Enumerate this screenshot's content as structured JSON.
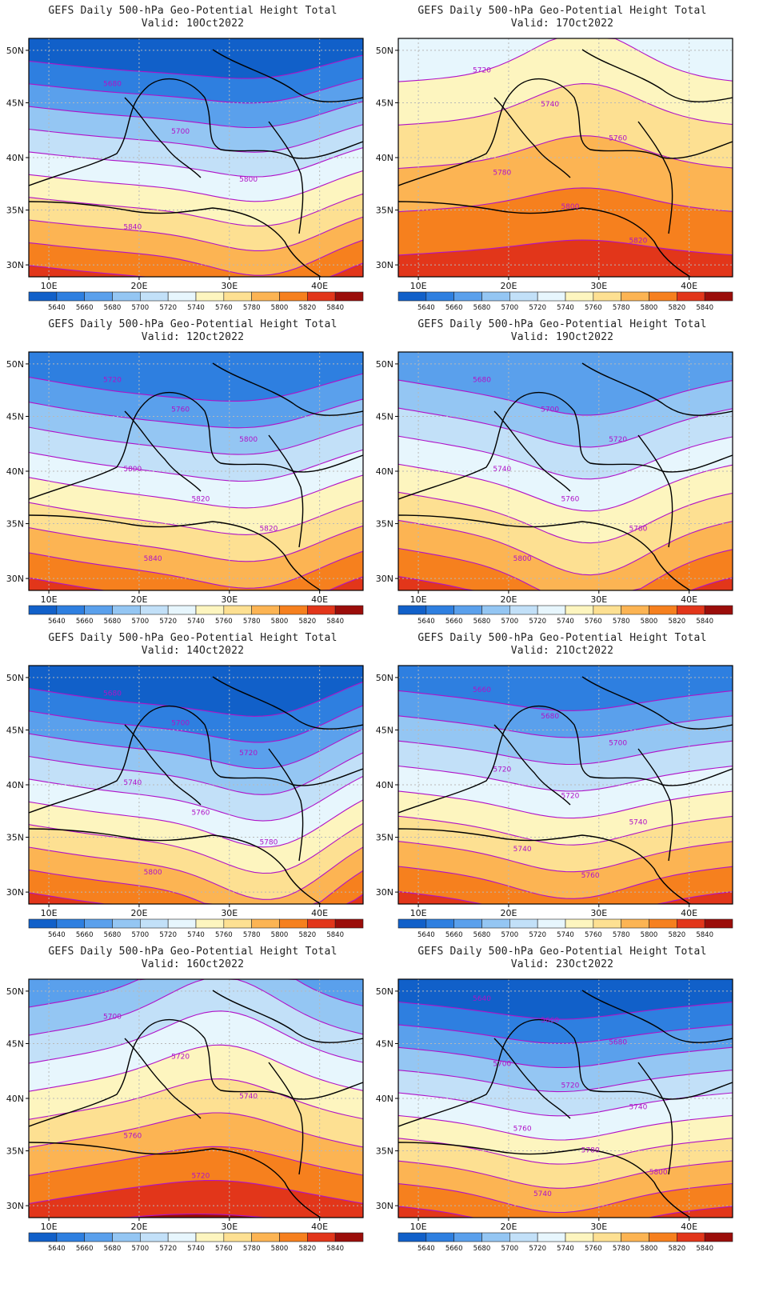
{
  "figure": {
    "title": "GEFS Daily 500-hPa Geo-Potential Height Total",
    "valid_prefix": "Valid:"
  },
  "colors": {
    "levels": [
      5640,
      5660,
      5680,
      5700,
      5720,
      5740,
      5760,
      5780,
      5800,
      5820,
      5840
    ],
    "fills": [
      "#1160c9",
      "#2e7fe0",
      "#5aa0ec",
      "#94c6f3",
      "#c2e0f8",
      "#e7f6fd",
      "#fdf5bf",
      "#fde092",
      "#fcb453",
      "#f6801e",
      "#e2361a",
      "#9b0d0a"
    ],
    "contour": "#b012c8",
    "coast": "#000000",
    "grid": "#b8b8b8"
  },
  "axes": {
    "lon_ticks": [
      "10E",
      "20E",
      "30E",
      "40E"
    ],
    "lat_ticks": [
      "50N",
      "45N",
      "40N",
      "35N",
      "30N"
    ]
  },
  "panels": [
    {
      "valid_date": "10Oct2022",
      "column": "left",
      "row": 1,
      "contour_labels": [
        "5680",
        "5700",
        "5800",
        "5840"
      ]
    },
    {
      "valid_date": "17Oct2022",
      "column": "right",
      "row": 1,
      "contour_labels": [
        "5720",
        "5740",
        "5760",
        "5780",
        "5800",
        "5820"
      ]
    },
    {
      "valid_date": "12Oct2022",
      "column": "left",
      "row": 2,
      "contour_labels": [
        "5720",
        "5760",
        "5800",
        "5800",
        "5820",
        "5820",
        "5840"
      ]
    },
    {
      "valid_date": "19Oct2022",
      "column": "right",
      "row": 2,
      "contour_labels": [
        "5680",
        "5700",
        "5720",
        "5740",
        "5760",
        "5780",
        "5800"
      ]
    },
    {
      "valid_date": "14Oct2022",
      "column": "left",
      "row": 3,
      "contour_labels": [
        "5680",
        "5700",
        "5720",
        "5740",
        "5760",
        "5780",
        "5800"
      ]
    },
    {
      "valid_date": "21Oct2022",
      "column": "right",
      "row": 3,
      "contour_labels": [
        "5660",
        "5680",
        "5700",
        "5720",
        "5720",
        "5740",
        "5740",
        "5760"
      ]
    },
    {
      "valid_date": "16Oct2022",
      "column": "left",
      "row": 4,
      "contour_labels": [
        "5700",
        "5720",
        "5740",
        "5760",
        "5720"
      ]
    },
    {
      "valid_date": "23Oct2022",
      "column": "right",
      "row": 4,
      "contour_labels": [
        "5640",
        "5660",
        "5680",
        "5700",
        "5720",
        "5740",
        "5760",
        "5780",
        "5800",
        "5740"
      ]
    }
  ]
}
